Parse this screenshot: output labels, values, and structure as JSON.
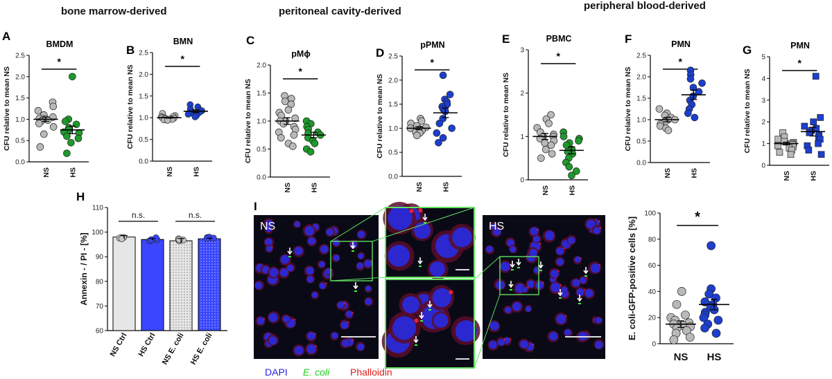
{
  "sections": [
    {
      "text": "bone marrow-derived"
    },
    {
      "text": "peritoneal cavity-derived"
    },
    {
      "text": "peripheral blood-derived"
    }
  ],
  "colors": {
    "NS": "#b9b9b9",
    "HS_green": "#1e9a2c",
    "HS_blue": "#1c3fd0",
    "bar_ns": "#e6e6e6",
    "bar_hs": "#3a47ff"
  },
  "chart_data": [
    {
      "type": "scatter",
      "panel": "A",
      "title": "BMDM",
      "ylabel": "CFU relative to mean NS",
      "categories": [
        "NS",
        "HS"
      ],
      "ylim": [
        0,
        2.5
      ],
      "yticks": [
        0,
        0.5,
        1.0,
        1.5,
        2.0,
        2.5
      ],
      "yticklabels": [
        "0.0",
        "0.5",
        "1.0",
        "1.5",
        "2.0",
        "2.5"
      ],
      "significance": "*",
      "series": [
        {
          "values": [
            1.4,
            1.3,
            1.2,
            1.1,
            1.05,
            1.02,
            1.0,
            1.0,
            0.98,
            0.95,
            0.9,
            0.82,
            0.65,
            0.35
          ],
          "mean": 1.0,
          "sem": 0.05
        },
        {
          "values": [
            2.0,
            1.0,
            0.95,
            0.88,
            0.8,
            0.75,
            0.7,
            0.68,
            0.6,
            0.55,
            0.45,
            0.2
          ],
          "mean": 0.75,
          "sem": 0.09
        }
      ]
    },
    {
      "type": "scatter",
      "panel": "B",
      "title": "BMN",
      "ylabel": "CFU relative to mean NS",
      "categories": [
        "NS",
        "HS"
      ],
      "ylim": [
        0,
        2.5
      ],
      "yticks": [
        0,
        0.5,
        1.0,
        1.5,
        2.0,
        2.5
      ],
      "yticklabels": [
        "0.0",
        "0.5",
        "1.0",
        "1.5",
        "2.0",
        "2.5"
      ],
      "significance": "*",
      "series": [
        {
          "values": [
            1.1,
            1.05,
            1.03,
            1.02,
            1.0,
            1.0,
            0.99,
            0.98,
            0.97,
            0.96,
            0.95,
            0.94
          ],
          "mean": 1.0,
          "sem": 0.01
        },
        {
          "values": [
            1.3,
            1.25,
            1.2,
            1.18,
            1.16,
            1.14,
            1.12,
            1.1,
            1.08,
            1.05,
            1.02
          ],
          "mean": 1.15,
          "sem": 0.03
        }
      ]
    },
    {
      "type": "scatter",
      "panel": "C",
      "title": "pMϕ",
      "ylabel": "CFU relative to mean NS",
      "categories": [
        "NS",
        "HS"
      ],
      "ylim": [
        0,
        2.0
      ],
      "yticks": [
        0,
        0.5,
        1.0,
        1.5,
        2.0
      ],
      "yticklabels": [
        "0.0",
        "0.5",
        "1.0",
        "1.5",
        "2.0"
      ],
      "significance": "*",
      "series": [
        {
          "values": [
            1.45,
            1.4,
            1.35,
            1.3,
            1.2,
            1.15,
            1.1,
            1.05,
            1.0,
            1.0,
            0.95,
            0.9,
            0.85,
            0.8,
            0.75,
            0.7,
            0.6,
            0.55
          ],
          "mean": 1.0,
          "sem": 0.06
        },
        {
          "values": [
            1.0,
            0.95,
            0.9,
            0.85,
            0.8,
            0.78,
            0.75,
            0.7,
            0.65,
            0.6,
            0.5,
            0.45
          ],
          "mean": 0.75,
          "sem": 0.05
        }
      ]
    },
    {
      "type": "scatter",
      "panel": "D",
      "title": "pPMN",
      "ylabel": "CFU relative to mean NS",
      "categories": [
        "NS",
        "HS"
      ],
      "ylim": [
        0,
        2.5
      ],
      "yticks": [
        0,
        0.5,
        1.0,
        1.5,
        2.0,
        2.5
      ],
      "yticklabels": [
        "0.0",
        "0.5",
        "1.0",
        "1.5",
        "2.0",
        "2.5"
      ],
      "significance": "*",
      "series": [
        {
          "values": [
            1.2,
            1.15,
            1.1,
            1.05,
            1.02,
            1.0,
            0.98,
            0.95,
            0.92,
            0.9,
            0.85
          ],
          "mean": 1.0,
          "sem": 0.03
        },
        {
          "values": [
            2.1,
            1.7,
            1.6,
            1.55,
            1.5,
            1.45,
            1.4,
            1.35,
            1.2,
            1.1,
            1.0,
            0.9,
            0.8,
            0.7
          ],
          "mean": 1.32,
          "sem": 0.1
        }
      ]
    },
    {
      "type": "scatter",
      "panel": "E",
      "title": "PBMC",
      "ylabel": "CFU relative to mean NS",
      "categories": [
        "NS",
        "HS"
      ],
      "ylim": [
        0,
        3
      ],
      "yticks": [
        0,
        1,
        2,
        3
      ],
      "yticklabels": [
        "0",
        "1",
        "2",
        "3"
      ],
      "significance": "*",
      "series": [
        {
          "values": [
            1.5,
            1.4,
            1.3,
            1.2,
            1.1,
            1.05,
            1.0,
            1.0,
            0.95,
            0.9,
            0.85,
            0.8,
            0.7,
            0.6,
            0.5
          ],
          "mean": 1.0,
          "sem": 0.07
        },
        {
          "values": [
            1.1,
            1.0,
            0.95,
            0.9,
            0.85,
            0.8,
            0.7,
            0.65,
            0.6,
            0.5,
            0.4,
            0.3,
            0.2,
            0.1
          ],
          "mean": 0.68,
          "sem": 0.08
        }
      ]
    },
    {
      "type": "scatter",
      "panel": "F",
      "title": "PMN",
      "ylabel": "CFU relative to mean NS",
      "categories": [
        "NS",
        "HS"
      ],
      "ylim": [
        0,
        2.5
      ],
      "yticks": [
        0,
        0.5,
        1.0,
        1.5,
        2.0,
        2.5
      ],
      "yticklabels": [
        "0.0",
        "0.5",
        "1.0",
        "1.5",
        "2.0",
        "2.5"
      ],
      "significance": "*",
      "series": [
        {
          "values": [
            1.25,
            1.15,
            1.1,
            1.05,
            1.0,
            1.0,
            0.95,
            0.9,
            0.85,
            0.8,
            0.75
          ],
          "mean": 1.0,
          "sem": 0.05
        },
        {
          "values": [
            2.15,
            2.05,
            1.95,
            1.85,
            1.75,
            1.65,
            1.55,
            1.45,
            1.35,
            1.25,
            1.15,
            1.05
          ],
          "mean": 1.58,
          "sem": 0.11
        }
      ]
    },
    {
      "type": "scatter",
      "panel": "G",
      "title": "PMN",
      "ylabel": "CFU relative to mean NS",
      "categories": [
        "NS",
        "HS"
      ],
      "ylim": [
        0,
        5
      ],
      "yticks": [
        0,
        1,
        2,
        3,
        4,
        5
      ],
      "yticklabels": [
        "0",
        "1",
        "2",
        "3",
        "4",
        "5"
      ],
      "significance": "*",
      "marker": "square",
      "series": [
        {
          "values": [
            1.5,
            1.3,
            1.2,
            1.1,
            1.05,
            1.0,
            1.0,
            0.95,
            0.9,
            0.85,
            0.8,
            0.7,
            0.6,
            0.5
          ],
          "mean": 1.0,
          "sem": 0.06
        },
        {
          "values": [
            4.1,
            2.2,
            2.0,
            1.8,
            1.7,
            1.6,
            1.5,
            1.4,
            1.3,
            1.2,
            1.0,
            0.9,
            0.7,
            0.5
          ],
          "mean": 1.55,
          "sem": 0.2
        }
      ]
    },
    {
      "type": "bar",
      "panel": "H",
      "ylabel": "Annexin - / PI -  [%]",
      "categories": [
        "NS Ctrl",
        "HS Ctrl",
        "NS E. coli",
        "HS E. coli"
      ],
      "values": [
        98,
        97,
        96.5,
        97.3
      ],
      "sem": [
        0.6,
        0.4,
        0.9,
        0.2
      ],
      "ylim": [
        60,
        110
      ],
      "yticks": [
        60,
        70,
        80,
        90,
        100,
        110
      ],
      "yticklabels": [
        "60",
        "70",
        "80",
        "90",
        "100",
        "110"
      ],
      "comparisons": [
        {
          "pair": [
            0,
            1
          ],
          "label": "n.s."
        },
        {
          "pair": [
            2,
            3
          ],
          "label": "n.s."
        }
      ]
    },
    {
      "type": "scatter",
      "panel": "I-right",
      "ylabel": "E. coli-GFP-positive cells [%]",
      "categories": [
        "NS",
        "HS"
      ],
      "ylim": [
        0,
        100
      ],
      "yticks": [
        0,
        20,
        40,
        60,
        80,
        100
      ],
      "yticklabels": [
        "0",
        "20",
        "40",
        "60",
        "80",
        "100"
      ],
      "significance": "*",
      "series": [
        {
          "values": [
            40,
            30,
            22,
            20,
            18,
            16,
            15,
            14,
            13,
            12,
            10,
            8,
            5,
            3
          ],
          "mean": 15,
          "sem": 2.5
        },
        {
          "values": [
            75,
            42,
            38,
            35,
            32,
            30,
            28,
            26,
            24,
            22,
            20,
            18,
            15,
            12,
            8
          ],
          "mean": 30,
          "sem": 4
        }
      ]
    }
  ],
  "panel_labels": [
    "A",
    "B",
    "C",
    "D",
    "E",
    "F",
    "G",
    "H",
    "I"
  ],
  "microscopy": {
    "ns_label": "NS",
    "hs_label": "HS",
    "legend": [
      {
        "text": "DAPI",
        "color": "#2323e0"
      },
      {
        "text": "E. coli",
        "color": "#22cc22"
      },
      {
        "text": "Phalloidin",
        "color": "#e01c1c"
      }
    ]
  }
}
